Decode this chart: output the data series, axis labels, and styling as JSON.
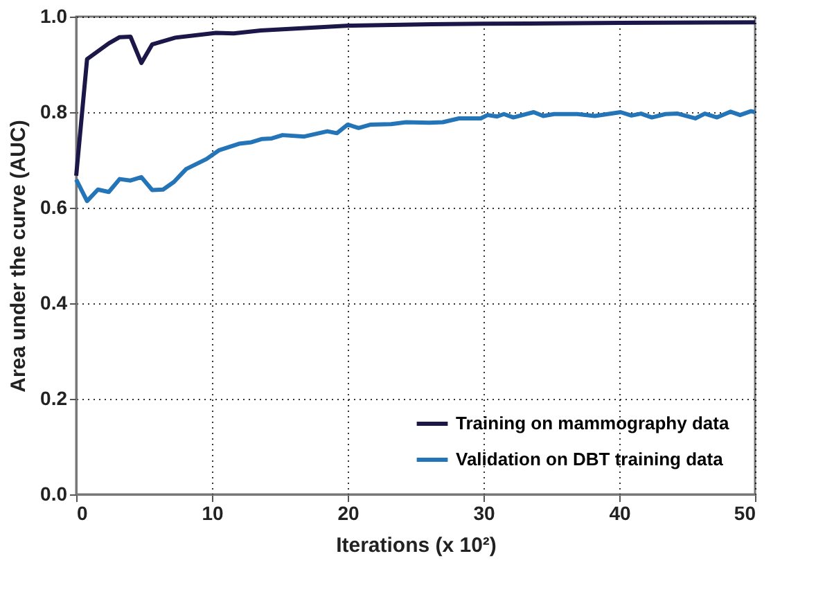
{
  "chart_data": {
    "type": "line",
    "xlabel": "Iterations (x 10²)",
    "ylabel": "Area under the curve (AUC)",
    "xlim": [
      0,
      50
    ],
    "xticks": [
      0,
      10,
      20,
      30,
      40,
      50
    ],
    "ylim": [
      0,
      1
    ],
    "yticks": [
      {
        "value": 0,
        "label": "0.0"
      },
      {
        "value": 0.2,
        "label": "0.2"
      },
      {
        "value": 0.4,
        "label": "0.4"
      },
      {
        "value": 0.6,
        "label": "0.6"
      },
      {
        "value": 0.8,
        "label": "0.8"
      },
      {
        "value": 1,
        "label": "1.0"
      }
    ],
    "grid": true,
    "legend": "bottom right",
    "line_style": "solid",
    "marker": "none",
    "series": [
      {
        "name": "Training on mammography data",
        "color": "#1b1748",
        "x": [
          0,
          0.8,
          2.4,
          3.2,
          4.0,
          4.8,
          5.6,
          7.3,
          10.3,
          11.6,
          13.6,
          20.1,
          26.2,
          30,
          40,
          50
        ],
        "values": [
          0.667,
          0.911,
          0.944,
          0.957,
          0.958,
          0.903,
          0.942,
          0.956,
          0.966,
          0.965,
          0.971,
          0.981,
          0.984,
          0.985,
          0.987,
          0.988
        ]
      },
      {
        "name": "Validation on DBT training data",
        "color": "#2474b8",
        "x": [
          0,
          0.8,
          1.6,
          2.4,
          3.2,
          4.0,
          4.8,
          5.6,
          6.4,
          7.2,
          8.1,
          9.6,
          10.5,
          12.0,
          12.9,
          13.7,
          14.4,
          15.2,
          16.8,
          18.5,
          19.2,
          20.0,
          20.8,
          21.7,
          23.2,
          24.3,
          26.0,
          27.0,
          28.2,
          29.8,
          30.3,
          31.0,
          31.5,
          32.2,
          33.7,
          34.4,
          35.2,
          36.9,
          38.2,
          40.1,
          40.9,
          41.6,
          42.4,
          43.4,
          44.3,
          45.6,
          46.3,
          47.2,
          48.2,
          48.9,
          49.7,
          50
        ],
        "values": [
          0.659,
          0.614,
          0.638,
          0.633,
          0.66,
          0.657,
          0.664,
          0.637,
          0.638,
          0.654,
          0.681,
          0.702,
          0.72,
          0.734,
          0.737,
          0.744,
          0.745,
          0.752,
          0.749,
          0.76,
          0.756,
          0.774,
          0.767,
          0.774,
          0.775,
          0.779,
          0.778,
          0.779,
          0.787,
          0.787,
          0.794,
          0.791,
          0.796,
          0.789,
          0.8,
          0.792,
          0.796,
          0.796,
          0.792,
          0.8,
          0.793,
          0.797,
          0.789,
          0.796,
          0.797,
          0.787,
          0.797,
          0.789,
          0.801,
          0.794,
          0.802,
          0.8
        ]
      }
    ]
  }
}
